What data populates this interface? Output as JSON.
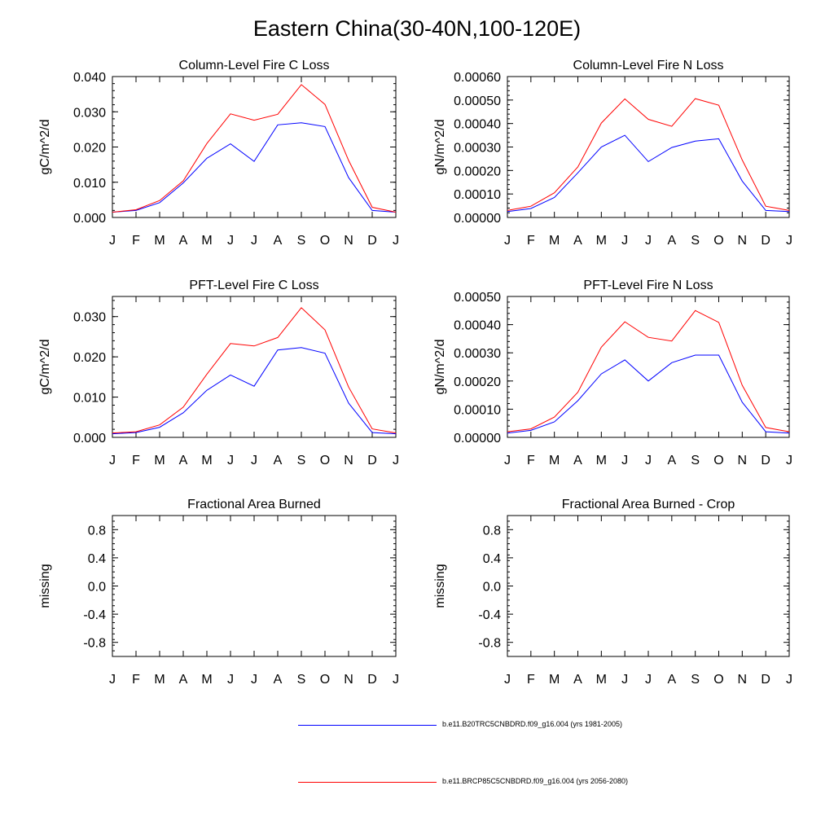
{
  "title": "Eastern China(30-40N,100-120E)",
  "colors": {
    "series1": "#0000ff",
    "series2": "#ff0000",
    "axis": "#000000"
  },
  "legend": [
    {
      "label": "b.e11.B20TRC5CNBDRD.f09_g16.004 (yrs 1981-2005)",
      "color": "#0000ff"
    },
    {
      "label": "b.e11.BRCP85C5CNBDRD.f09_g16.004 (yrs 2056-2080)",
      "color": "#ff0000"
    }
  ],
  "chart_data": [
    {
      "type": "line",
      "title": "Column-Level Fire C Loss",
      "ylabel": "gC/m^2/d",
      "categories": [
        "J",
        "F",
        "M",
        "A",
        "M",
        "J",
        "J",
        "A",
        "S",
        "O",
        "N",
        "D",
        "J"
      ],
      "ylim": [
        0,
        0.04
      ],
      "yticks": [
        0,
        0.01,
        0.02,
        0.03,
        0.04
      ],
      "ytick_labels": [
        "0.000",
        "0.010",
        "0.020",
        "0.030",
        "0.040"
      ],
      "series": [
        {
          "name": "b.e11.B20TRC5CNBDRD.f09_g16.004 (yrs 1981-2005)",
          "color": "#0000ff",
          "values": [
            0.0015,
            0.002,
            0.0042,
            0.0098,
            0.0168,
            0.0209,
            0.0159,
            0.0263,
            0.0269,
            0.0258,
            0.0113,
            0.002,
            0.0015
          ]
        },
        {
          "name": "b.e11.BRCP85C5CNBDRD.f09_g16.004 (yrs 2056-2080)",
          "color": "#ff0000",
          "values": [
            0.0015,
            0.0022,
            0.0048,
            0.0104,
            0.021,
            0.0294,
            0.0276,
            0.0293,
            0.0377,
            0.0321,
            0.0162,
            0.0029,
            0.0015
          ]
        }
      ]
    },
    {
      "type": "line",
      "title": "Column-Level Fire N Loss",
      "ylabel": "gN/m^2/d",
      "categories": [
        "J",
        "F",
        "M",
        "A",
        "M",
        "J",
        "J",
        "A",
        "S",
        "O",
        "N",
        "D",
        "J"
      ],
      "ylim": [
        0,
        0.0006
      ],
      "yticks": [
        0,
        0.0001,
        0.0002,
        0.0003,
        0.0004,
        0.0005,
        0.0006
      ],
      "ytick_labels": [
        "0.00000",
        "0.00010",
        "0.00020",
        "0.00030",
        "0.00040",
        "0.00050",
        "0.00060"
      ],
      "series": [
        {
          "name": "b.e11.B20TRC5CNBDRD.f09_g16.004 (yrs 1981-2005)",
          "color": "#0000ff",
          "values": [
            2.5e-05,
            3.8e-05,
            8.5e-05,
            0.00019,
            0.0003,
            0.00035,
            0.000238,
            0.000298,
            0.000325,
            0.000335,
            0.000155,
            3e-05,
            2.5e-05
          ]
        },
        {
          "name": "b.e11.BRCP85C5CNBDRD.f09_g16.004 (yrs 2056-2080)",
          "color": "#ff0000",
          "values": [
            3e-05,
            4.8e-05,
            0.000105,
            0.000215,
            0.000402,
            0.000505,
            0.000418,
            0.000388,
            0.000506,
            0.000478,
            0.000245,
            4.8e-05,
            3e-05
          ]
        }
      ]
    },
    {
      "type": "line",
      "title": "PFT-Level Fire C Loss",
      "ylabel": "gC/m^2/d",
      "categories": [
        "J",
        "F",
        "M",
        "A",
        "M",
        "J",
        "J",
        "A",
        "S",
        "O",
        "N",
        "D",
        "J"
      ],
      "ylim": [
        0,
        0.035
      ],
      "yticks": [
        0,
        0.01,
        0.02,
        0.03
      ],
      "ytick_labels": [
        "0.000",
        "0.010",
        "0.020",
        "0.030"
      ],
      "series": [
        {
          "name": "b.e11.B20TRC5CNBDRD.f09_g16.004 (yrs 1981-2005)",
          "color": "#0000ff",
          "values": [
            0.0009,
            0.0012,
            0.0025,
            0.0061,
            0.0117,
            0.0155,
            0.0127,
            0.0217,
            0.0223,
            0.0209,
            0.0085,
            0.0012,
            0.0009
          ]
        },
        {
          "name": "b.e11.BRCP85C5CNBDRD.f09_g16.004 (yrs 2056-2080)",
          "color": "#ff0000",
          "values": [
            0.0011,
            0.0014,
            0.0031,
            0.0075,
            0.0157,
            0.0233,
            0.0227,
            0.0248,
            0.0322,
            0.0267,
            0.0125,
            0.0021,
            0.0011
          ]
        }
      ]
    },
    {
      "type": "line",
      "title": "PFT-Level Fire N Loss",
      "ylabel": "gN/m^2/d",
      "categories": [
        "J",
        "F",
        "M",
        "A",
        "M",
        "J",
        "J",
        "A",
        "S",
        "O",
        "N",
        "D",
        "J"
      ],
      "ylim": [
        0,
        0.0005
      ],
      "yticks": [
        0,
        0.0001,
        0.0002,
        0.0003,
        0.0004,
        0.0005
      ],
      "ytick_labels": [
        "0.00000",
        "0.00010",
        "0.00020",
        "0.00030",
        "0.00040",
        "0.00050"
      ],
      "series": [
        {
          "name": "b.e11.B20TRC5CNBDRD.f09_g16.004 (yrs 1981-2005)",
          "color": "#0000ff",
          "values": [
            1.5e-05,
            2.5e-05,
            5.5e-05,
            0.00013,
            0.000225,
            0.000275,
            0.0002,
            0.000265,
            0.000292,
            0.000292,
            0.000125,
            2e-05,
            1.5e-05
          ]
        },
        {
          "name": "b.e11.BRCP85C5CNBDRD.f09_g16.004 (yrs 2056-2080)",
          "color": "#ff0000",
          "values": [
            2e-05,
            3e-05,
            7.2e-05,
            0.00016,
            0.00032,
            0.00041,
            0.000355,
            0.000342,
            0.00045,
            0.000408,
            0.000185,
            3.5e-05,
            2e-05
          ]
        }
      ]
    },
    {
      "type": "line",
      "title": "Fractional Area Burned",
      "ylabel": "missing",
      "categories": [
        "J",
        "F",
        "M",
        "A",
        "M",
        "J",
        "J",
        "A",
        "S",
        "O",
        "N",
        "D",
        "J"
      ],
      "ylim": [
        -1,
        1
      ],
      "yticks": [
        -0.8,
        -0.4,
        0.0,
        0.4,
        0.8
      ],
      "ytick_labels": [
        "-0.8",
        "-0.4",
        "0.0",
        "0.4",
        "0.8"
      ],
      "series": []
    },
    {
      "type": "line",
      "title": "Fractional Area Burned - Crop",
      "ylabel": "missing",
      "categories": [
        "J",
        "F",
        "M",
        "A",
        "M",
        "J",
        "J",
        "A",
        "S",
        "O",
        "N",
        "D",
        "J"
      ],
      "ylim": [
        -1,
        1
      ],
      "yticks": [
        -0.8,
        -0.4,
        0.0,
        0.4,
        0.8
      ],
      "ytick_labels": [
        "-0.8",
        "-0.4",
        "0.0",
        "0.4",
        "0.8"
      ],
      "series": []
    }
  ]
}
